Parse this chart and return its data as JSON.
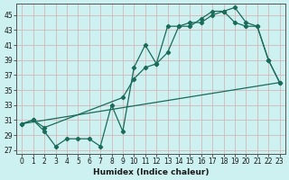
{
  "xlabel": "Humidex (Indice chaleur)",
  "bg_color": "#cdf0f0",
  "line_color": "#1a6b5a",
  "grid_color": "#b0dede",
  "xlim": [
    -0.5,
    23.5
  ],
  "ylim": [
    26.5,
    46.5
  ],
  "xticks": [
    0,
    1,
    2,
    3,
    4,
    5,
    6,
    7,
    8,
    9,
    10,
    11,
    12,
    13,
    14,
    15,
    16,
    17,
    18,
    19,
    20,
    21,
    22,
    23
  ],
  "yticks": [
    27,
    29,
    31,
    33,
    35,
    37,
    39,
    41,
    43,
    45
  ],
  "line1_x": [
    0,
    1,
    2,
    3,
    4,
    5,
    6,
    7,
    8,
    9,
    10,
    11,
    12,
    13,
    14,
    15,
    16,
    17,
    18,
    19,
    20,
    21,
    22,
    23
  ],
  "line1_y": [
    30.5,
    31.0,
    29.5,
    27.5,
    28.5,
    28.5,
    28.5,
    27.5,
    33.0,
    29.5,
    38.0,
    41.0,
    38.5,
    43.5,
    43.5,
    43.5,
    44.5,
    45.5,
    45.5,
    46.0,
    44.0,
    43.5,
    39.0,
    36.0
  ],
  "line2_x": [
    0,
    1,
    2,
    9,
    10,
    11,
    12,
    13,
    14,
    15,
    16,
    17,
    18,
    19,
    20,
    21,
    22,
    23
  ],
  "line2_y": [
    30.5,
    31.0,
    30.0,
    34.0,
    36.5,
    38.0,
    38.5,
    40.0,
    43.5,
    44.0,
    44.0,
    45.0,
    45.5,
    44.0,
    43.5,
    43.5,
    39.0,
    36.0
  ],
  "line3_x": [
    0,
    23
  ],
  "line3_y": [
    30.5,
    36.0
  ]
}
